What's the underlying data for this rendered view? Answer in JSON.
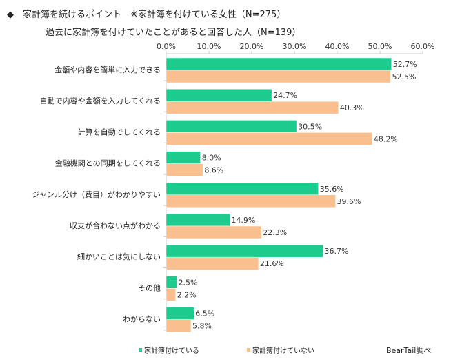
{
  "header": {
    "title_line1": "◆　家計簿を続けるポイント　※家計簿を付けている女性（N=275）",
    "title_line2": "過去に家計簿を付けていたことがあると回答した人（N=139）"
  },
  "colors": {
    "series1": "#1ecb8f",
    "series2": "#f9bf8f",
    "axis": "#c8c8c8",
    "bar_edge": "#ffffff"
  },
  "chart_data": {
    "type": "bar",
    "orientation": "horizontal",
    "categories": [
      "金額や内容を簡単に入力できる",
      "自動で内容や金額を入力してくれる",
      "計算を自動でしてくれる",
      "金融機関との同期をしてくれる",
      "ジャンル分け（費目）がわかりやすい",
      "収支が合わない点がわかる",
      "細かいことは気にしない",
      "その他",
      "わからない"
    ],
    "series": [
      {
        "name": "家計簿付けている",
        "values": [
          52.7,
          24.7,
          30.5,
          8.0,
          35.6,
          14.9,
          36.7,
          2.5,
          6.5
        ],
        "labels": [
          "52.7%",
          "24.7%",
          "30.5%",
          "8.0%",
          "35.6%",
          "14.9%",
          "36.7%",
          "2.5%",
          "6.5%"
        ]
      },
      {
        "name": "家計簿付けていない",
        "values": [
          52.5,
          40.3,
          48.2,
          8.6,
          39.6,
          22.3,
          21.6,
          2.2,
          5.8
        ],
        "labels": [
          "52.5%",
          "40.3%",
          "48.2%",
          "8.6%",
          "39.6%",
          "22.3%",
          "21.6%",
          "2.2%",
          "5.8%"
        ]
      }
    ],
    "xlim": [
      0,
      60
    ],
    "xticks": [
      0,
      10,
      20,
      30,
      40,
      50,
      60
    ],
    "xtick_labels": [
      "0.0%",
      "10.0%",
      "20.0%",
      "30.0%",
      "40.0%",
      "50.0%",
      "60.0%"
    ],
    "axis_position": "top",
    "grid": false,
    "legend_position": "bottom-left",
    "source": "BearTail調べ"
  }
}
